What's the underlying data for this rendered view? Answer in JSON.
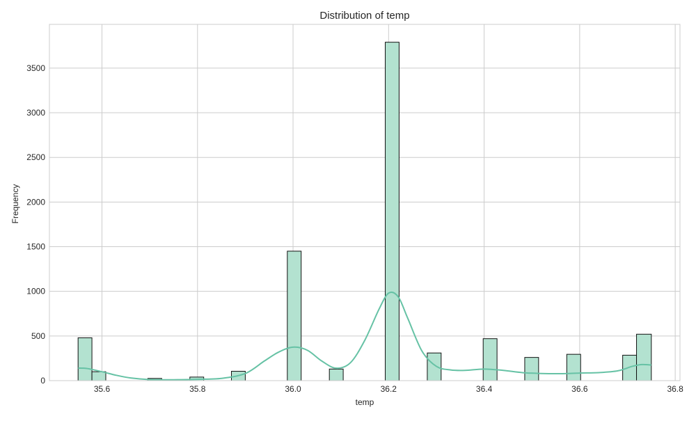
{
  "chart_data": {
    "type": "bar",
    "title": "Distribution of temp",
    "xlabel": "temp",
    "ylabel": "Frequency",
    "xlim": [
      35.49,
      36.81
    ],
    "ylim": [
      0,
      3990
    ],
    "x_ticks": [
      35.6,
      35.8,
      36.0,
      36.2,
      36.4,
      36.6,
      36.8
    ],
    "x_tick_labels": [
      "35.6",
      "35.8",
      "36.0",
      "36.2",
      "36.4",
      "36.6",
      "36.8"
    ],
    "y_ticks": [
      0,
      500,
      1000,
      1500,
      2000,
      2500,
      3000,
      3500
    ],
    "y_tick_labels": [
      "0",
      "500",
      "1000",
      "1500",
      "2000",
      "2500",
      "3000",
      "3500"
    ],
    "grid": true,
    "bar_color": "#b3e2d0",
    "bar_edge_color": "#111111",
    "kde_color": "#66c2a5",
    "bins": [
      {
        "x0": 35.55,
        "x1": 35.579,
        "count": 480
      },
      {
        "x0": 35.579,
        "x1": 35.608,
        "count": 100
      },
      {
        "x0": 35.696,
        "x1": 35.725,
        "count": 25
      },
      {
        "x0": 35.784,
        "x1": 35.813,
        "count": 40
      },
      {
        "x0": 35.871,
        "x1": 35.9,
        "count": 105
      },
      {
        "x0": 35.988,
        "x1": 36.017,
        "count": 1450
      },
      {
        "x0": 36.076,
        "x1": 36.105,
        "count": 130
      },
      {
        "x0": 36.193,
        "x1": 36.222,
        "count": 3790
      },
      {
        "x0": 36.281,
        "x1": 36.31,
        "count": 310
      },
      {
        "x0": 36.398,
        "x1": 36.427,
        "count": 470
      },
      {
        "x0": 36.485,
        "x1": 36.514,
        "count": 260
      },
      {
        "x0": 36.573,
        "x1": 36.602,
        "count": 295
      },
      {
        "x0": 36.69,
        "x1": 36.719,
        "count": 285
      },
      {
        "x0": 36.719,
        "x1": 36.75,
        "count": 520
      }
    ],
    "kde": {
      "x": [
        35.55,
        35.57,
        35.6,
        35.63,
        35.66,
        35.7,
        35.75,
        35.8,
        35.85,
        35.9,
        35.94,
        35.97,
        36.0,
        36.03,
        36.06,
        36.09,
        36.12,
        36.15,
        36.18,
        36.2,
        36.22,
        36.24,
        36.27,
        36.3,
        36.33,
        36.36,
        36.4,
        36.44,
        36.48,
        36.52,
        36.56,
        36.6,
        36.64,
        36.68,
        36.71,
        36.73,
        36.75
      ],
      "y": [
        140,
        135,
        100,
        60,
        30,
        12,
        10,
        15,
        25,
        80,
        220,
        320,
        375,
        340,
        220,
        140,
        200,
        450,
        800,
        980,
        940,
        700,
        330,
        160,
        120,
        115,
        130,
        115,
        90,
        80,
        78,
        85,
        90,
        110,
        160,
        180,
        175
      ]
    }
  }
}
